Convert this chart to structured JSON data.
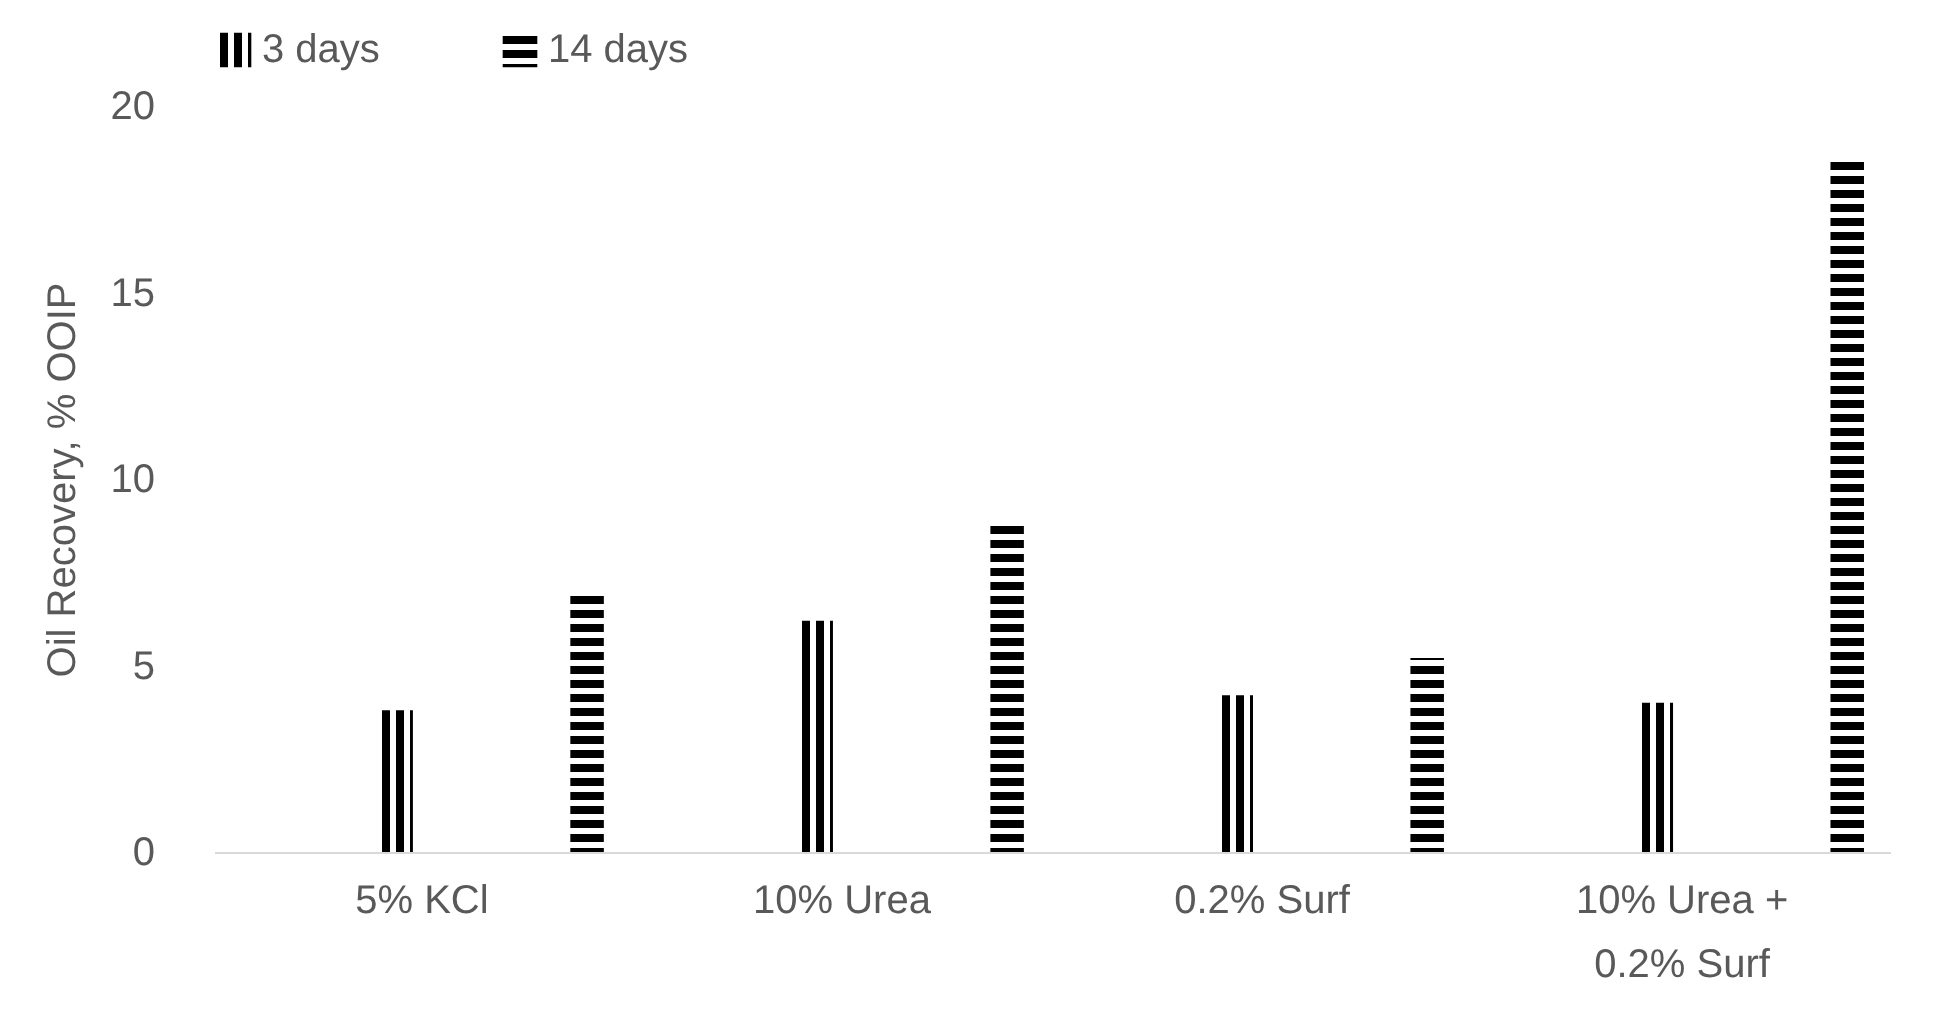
{
  "chart_data": {
    "type": "bar",
    "ylabel": "Oil Recovery, % OOIP",
    "categories": [
      "5% KCl",
      "10% Urea",
      "0.2% Surf",
      "10% Urea + 0.2% Surf"
    ],
    "series": [
      {
        "name": "3 days",
        "color": "#000000",
        "values": [
          3.8,
          6.2,
          4.2,
          4.0
        ]
      },
      {
        "name": "14 days",
        "color": "#000000",
        "values": [
          7.0,
          8.9,
          5.2,
          18.5
        ]
      }
    ],
    "ylim": [
      0,
      20
    ],
    "yticks": [
      0,
      5,
      10,
      15,
      20
    ],
    "grid": false,
    "legend": "top"
  }
}
